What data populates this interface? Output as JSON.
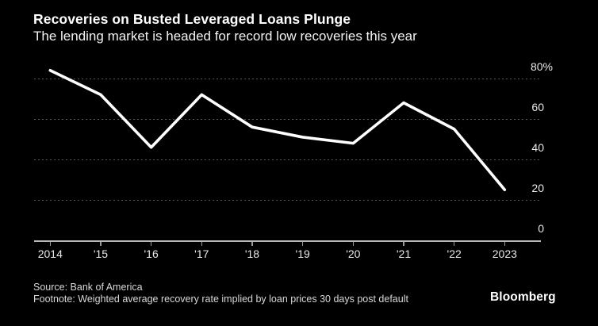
{
  "header": {
    "title": "Recoveries on Busted Leveraged Loans Plunge",
    "subtitle": "The lending market is headed for record low recoveries this year"
  },
  "chart_data": {
    "type": "line",
    "title": "Recoveries on Busted Leveraged Loans Plunge",
    "subtitle": "The lending market is headed for record low recoveries this year",
    "categories": [
      "2014",
      "'15",
      "'16",
      "'17",
      "'18",
      "'19",
      "'20",
      "'21",
      "'22",
      "2023"
    ],
    "series": [
      {
        "name": "Weighted average recovery rate",
        "values": [
          84,
          72,
          46,
          72,
          56,
          51,
          48,
          68,
          55,
          25
        ]
      }
    ],
    "xlabel": "",
    "ylabel": "",
    "unit": "%",
    "ylim": [
      0,
      85
    ],
    "yticks": [
      {
        "label": "80%",
        "value": 80
      },
      {
        "label": "60",
        "value": 60
      },
      {
        "label": "40",
        "value": 40
      },
      {
        "label": "20",
        "value": 20
      },
      {
        "label": "0",
        "value": 0
      }
    ],
    "grid": "horizontal-dotted",
    "legend": "none",
    "colors": {
      "background": "#000000",
      "line": "#ffffff",
      "gridline": "#585858",
      "axis": "#b8b8b8",
      "tick_label": "#e9e9e9",
      "text": "#ffffff"
    }
  },
  "footer": {
    "source": "Source: Bank of America",
    "footnote": "Footnote: Weighted average recovery rate implied by loan prices 30 days post default",
    "brand": "Bloomberg"
  }
}
